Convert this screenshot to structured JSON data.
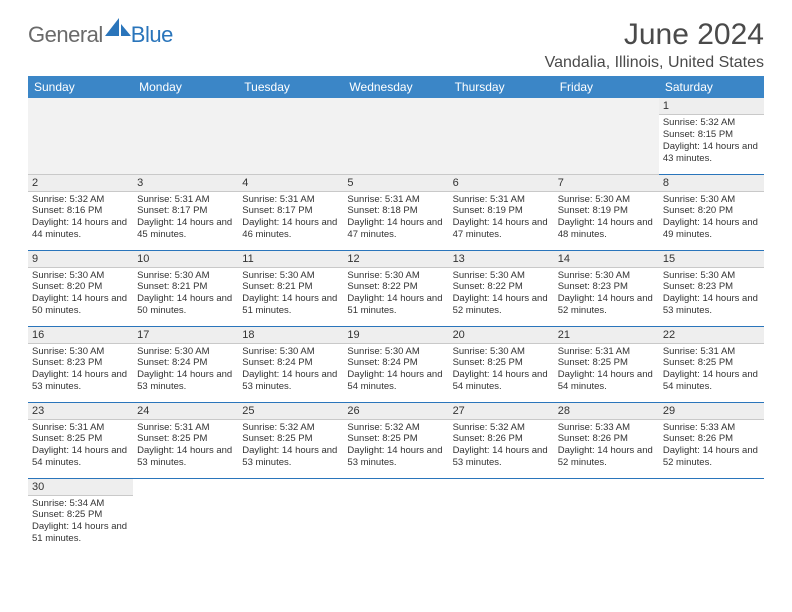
{
  "logo": {
    "text1": "General",
    "text2": "Blue",
    "color_gray": "#6a6a6a",
    "color_blue": "#2a75bb"
  },
  "title": "June 2024",
  "location": "Vandalia, Illinois, United States",
  "header_bg": "#3b86c7",
  "header_fg": "#ffffff",
  "border_color": "#2a75bb",
  "day_columns": [
    "Sunday",
    "Monday",
    "Tuesday",
    "Wednesday",
    "Thursday",
    "Friday",
    "Saturday"
  ],
  "weeks": [
    [
      null,
      null,
      null,
      null,
      null,
      null,
      {
        "n": "1",
        "sr": "5:32 AM",
        "ss": "8:15 PM",
        "dl": "14 hours and 43 minutes."
      }
    ],
    [
      {
        "n": "2",
        "sr": "5:32 AM",
        "ss": "8:16 PM",
        "dl": "14 hours and 44 minutes."
      },
      {
        "n": "3",
        "sr": "5:31 AM",
        "ss": "8:17 PM",
        "dl": "14 hours and 45 minutes."
      },
      {
        "n": "4",
        "sr": "5:31 AM",
        "ss": "8:17 PM",
        "dl": "14 hours and 46 minutes."
      },
      {
        "n": "5",
        "sr": "5:31 AM",
        "ss": "8:18 PM",
        "dl": "14 hours and 47 minutes."
      },
      {
        "n": "6",
        "sr": "5:31 AM",
        "ss": "8:19 PM",
        "dl": "14 hours and 47 minutes."
      },
      {
        "n": "7",
        "sr": "5:30 AM",
        "ss": "8:19 PM",
        "dl": "14 hours and 48 minutes."
      },
      {
        "n": "8",
        "sr": "5:30 AM",
        "ss": "8:20 PM",
        "dl": "14 hours and 49 minutes."
      }
    ],
    [
      {
        "n": "9",
        "sr": "5:30 AM",
        "ss": "8:20 PM",
        "dl": "14 hours and 50 minutes."
      },
      {
        "n": "10",
        "sr": "5:30 AM",
        "ss": "8:21 PM",
        "dl": "14 hours and 50 minutes."
      },
      {
        "n": "11",
        "sr": "5:30 AM",
        "ss": "8:21 PM",
        "dl": "14 hours and 51 minutes."
      },
      {
        "n": "12",
        "sr": "5:30 AM",
        "ss": "8:22 PM",
        "dl": "14 hours and 51 minutes."
      },
      {
        "n": "13",
        "sr": "5:30 AM",
        "ss": "8:22 PM",
        "dl": "14 hours and 52 minutes."
      },
      {
        "n": "14",
        "sr": "5:30 AM",
        "ss": "8:23 PM",
        "dl": "14 hours and 52 minutes."
      },
      {
        "n": "15",
        "sr": "5:30 AM",
        "ss": "8:23 PM",
        "dl": "14 hours and 53 minutes."
      }
    ],
    [
      {
        "n": "16",
        "sr": "5:30 AM",
        "ss": "8:23 PM",
        "dl": "14 hours and 53 minutes."
      },
      {
        "n": "17",
        "sr": "5:30 AM",
        "ss": "8:24 PM",
        "dl": "14 hours and 53 minutes."
      },
      {
        "n": "18",
        "sr": "5:30 AM",
        "ss": "8:24 PM",
        "dl": "14 hours and 53 minutes."
      },
      {
        "n": "19",
        "sr": "5:30 AM",
        "ss": "8:24 PM",
        "dl": "14 hours and 54 minutes."
      },
      {
        "n": "20",
        "sr": "5:30 AM",
        "ss": "8:25 PM",
        "dl": "14 hours and 54 minutes."
      },
      {
        "n": "21",
        "sr": "5:31 AM",
        "ss": "8:25 PM",
        "dl": "14 hours and 54 minutes."
      },
      {
        "n": "22",
        "sr": "5:31 AM",
        "ss": "8:25 PM",
        "dl": "14 hours and 54 minutes."
      }
    ],
    [
      {
        "n": "23",
        "sr": "5:31 AM",
        "ss": "8:25 PM",
        "dl": "14 hours and 54 minutes."
      },
      {
        "n": "24",
        "sr": "5:31 AM",
        "ss": "8:25 PM",
        "dl": "14 hours and 53 minutes."
      },
      {
        "n": "25",
        "sr": "5:32 AM",
        "ss": "8:25 PM",
        "dl": "14 hours and 53 minutes."
      },
      {
        "n": "26",
        "sr": "5:32 AM",
        "ss": "8:25 PM",
        "dl": "14 hours and 53 minutes."
      },
      {
        "n": "27",
        "sr": "5:32 AM",
        "ss": "8:26 PM",
        "dl": "14 hours and 53 minutes."
      },
      {
        "n": "28",
        "sr": "5:33 AM",
        "ss": "8:26 PM",
        "dl": "14 hours and 52 minutes."
      },
      {
        "n": "29",
        "sr": "5:33 AM",
        "ss": "8:26 PM",
        "dl": "14 hours and 52 minutes."
      }
    ],
    [
      {
        "n": "30",
        "sr": "5:34 AM",
        "ss": "8:25 PM",
        "dl": "14 hours and 51 minutes."
      },
      null,
      null,
      null,
      null,
      null,
      null
    ]
  ],
  "labels": {
    "sunrise": "Sunrise:",
    "sunset": "Sunset:",
    "daylight": "Daylight:"
  }
}
